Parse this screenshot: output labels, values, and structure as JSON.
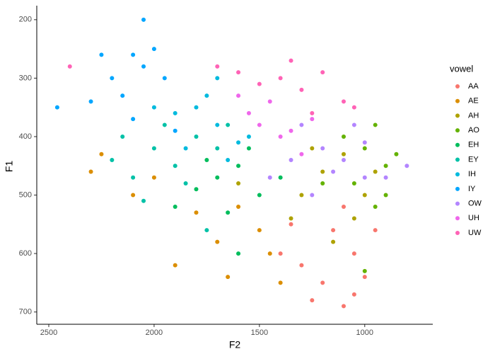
{
  "chart_data": {
    "type": "scatter",
    "x_label": "F2",
    "y_label": "F1",
    "legend_title": "vowel",
    "xlim": [
      2557,
      677
    ],
    "ylim": [
      721,
      176
    ],
    "xticks": [
      2500,
      2000,
      1500,
      1000
    ],
    "yticks": [
      200,
      300,
      400,
      500,
      600,
      700
    ],
    "grid": false,
    "legend": "right",
    "series": [
      {
        "name": "AA",
        "color": "#F8766D",
        "x": [
          1100,
          1200,
          1050,
          1300,
          1150,
          1000,
          1250,
          1400,
          950,
          1100,
          1350,
          1050
        ],
        "values": [
          690,
          650,
          600,
          620,
          560,
          640,
          680,
          600,
          560,
          520,
          550,
          670
        ]
      },
      {
        "name": "AE",
        "color": "#DB8E00",
        "x": [
          2300,
          2100,
          1900,
          1700,
          1600,
          1500,
          1400,
          1800,
          2000,
          1650,
          1450,
          2250
        ],
        "values": [
          460,
          500,
          620,
          580,
          520,
          560,
          650,
          530,
          470,
          640,
          600,
          430
        ]
      },
      {
        "name": "AH",
        "color": "#AEA200",
        "x": [
          1300,
          1200,
          1100,
          1000,
          1350,
          1150,
          1050,
          1250,
          1600,
          950
        ],
        "values": [
          500,
          460,
          430,
          500,
          540,
          580,
          540,
          420,
          480,
          460
        ]
      },
      {
        "name": "AO",
        "color": "#64B200",
        "x": [
          1000,
          950,
          900,
          1050,
          850,
          1100,
          950,
          1000,
          900,
          1200
        ],
        "values": [
          420,
          380,
          450,
          480,
          430,
          400,
          520,
          630,
          500,
          480
        ]
      },
      {
        "name": "EH",
        "color": "#00BD5C",
        "x": [
          1700,
          1600,
          1800,
          1500,
          1650,
          1550,
          1750,
          1400,
          1900,
          1600
        ],
        "values": [
          470,
          450,
          490,
          500,
          530,
          420,
          440,
          470,
          520,
          600
        ]
      },
      {
        "name": "EY",
        "color": "#00C1A7",
        "x": [
          2000,
          1900,
          1800,
          2100,
          1700,
          2200,
          1850,
          1950,
          2050,
          1750,
          1650,
          2150
        ],
        "values": [
          420,
          450,
          400,
          470,
          420,
          440,
          480,
          380,
          510,
          560,
          380,
          400
        ]
      },
      {
        "name": "IH",
        "color": "#00BADE",
        "x": [
          1700,
          1800,
          1600,
          1900,
          1750,
          1650,
          1850,
          2000,
          1550,
          1700
        ],
        "values": [
          380,
          350,
          410,
          360,
          330,
          440,
          420,
          350,
          400,
          300
        ]
      },
      {
        "name": "IY",
        "color": "#00A6FF",
        "x": [
          2100,
          2050,
          2200,
          2000,
          2150,
          2300,
          1950,
          2250,
          2460,
          2100,
          1900,
          2050
        ],
        "values": [
          260,
          280,
          300,
          250,
          330,
          340,
          300,
          260,
          350,
          370,
          390,
          200
        ]
      },
      {
        "name": "OW",
        "color": "#B385FF",
        "x": [
          1100,
          1000,
          1200,
          1300,
          1050,
          900,
          1150,
          1350,
          800,
          1250,
          1450,
          1000
        ],
        "values": [
          440,
          410,
          420,
          380,
          380,
          470,
          460,
          440,
          450,
          500,
          470,
          470
        ]
      },
      {
        "name": "UH",
        "color": "#EF67EB",
        "x": [
          1500,
          1400,
          1300,
          1600,
          1450,
          1350,
          1250,
          1550
        ],
        "values": [
          380,
          400,
          430,
          330,
          340,
          390,
          370,
          360
        ]
      },
      {
        "name": "UW",
        "color": "#FF63B6",
        "x": [
          1400,
          1300,
          1200,
          1500,
          1100,
          1600,
          1700,
          1250,
          1350,
          1050,
          2400
        ],
        "values": [
          300,
          320,
          290,
          310,
          340,
          290,
          280,
          360,
          270,
          350,
          280
        ]
      }
    ]
  }
}
